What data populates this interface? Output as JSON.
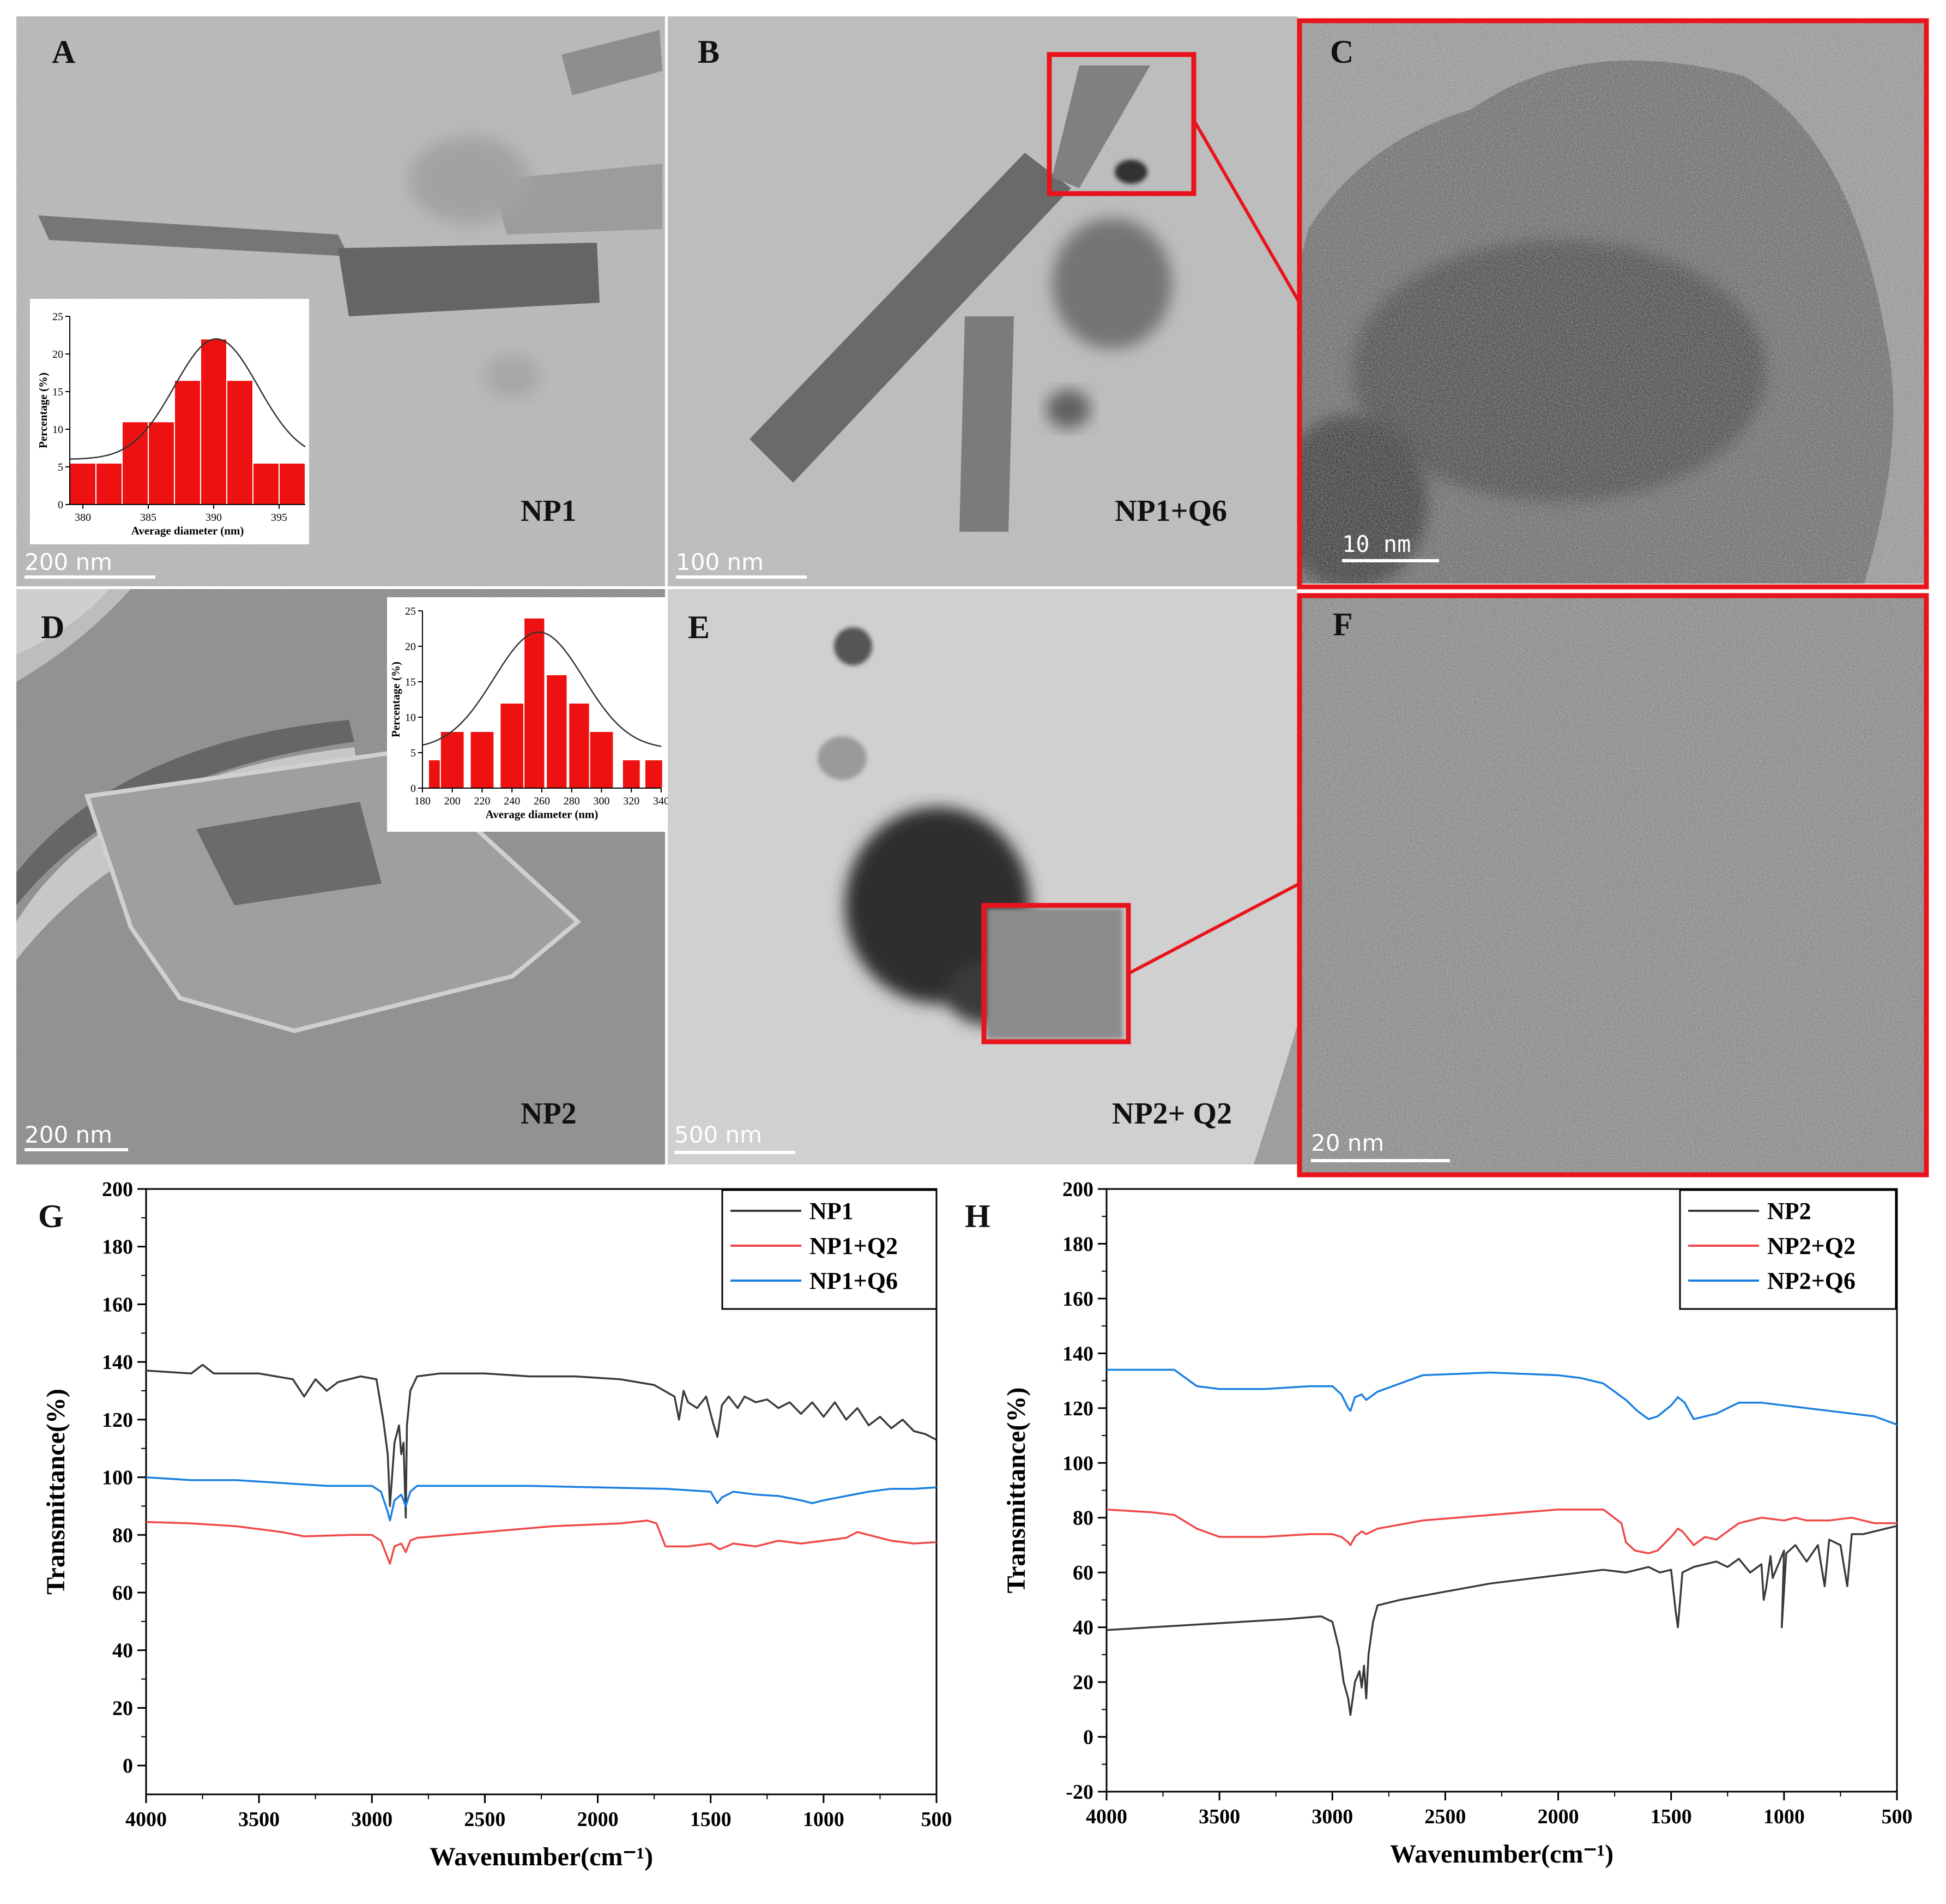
{
  "panels": {
    "A": {
      "letter": "A",
      "sample": "NP1",
      "scale": "200 nm"
    },
    "B": {
      "letter": "B",
      "sample": "NP1+Q6",
      "scale": "100 nm"
    },
    "C": {
      "letter": "C",
      "scale": "10 nm"
    },
    "D": {
      "letter": "D",
      "sample": "NP2",
      "scale": "200 nm"
    },
    "E": {
      "letter": "E",
      "sample": "NP2+ Q2",
      "scale": "500 nm"
    },
    "F": {
      "letter": "F",
      "scale": "20 nm"
    },
    "G": {
      "letter": "G"
    },
    "H": {
      "letter": "H"
    }
  },
  "colors": {
    "highlight": "#e8141c",
    "bar": "#ee1111",
    "np_base": "#3a3a3a",
    "q2": "#f04848",
    "q6": "#1a7fe0"
  },
  "chart_data": [
    {
      "id": "histA",
      "type": "bar",
      "categories": [
        380,
        382,
        384,
        386,
        388,
        390,
        392,
        394,
        396
      ],
      "values": [
        5.5,
        5.5,
        11,
        11,
        16.5,
        22,
        16.5,
        5.5,
        5.5
      ],
      "xticks": [
        380,
        385,
        390,
        395
      ],
      "yticks": [
        0,
        5,
        10,
        15,
        20,
        25
      ],
      "xlim": [
        379,
        397
      ],
      "ylim": [
        0,
        25
      ],
      "fit": {
        "mean": 390.2,
        "sd": 3.2,
        "peak": 22,
        "base": 6
      },
      "xlabel": "Average diameter (nm)",
      "ylabel": "Percentage (%)"
    },
    {
      "id": "histD",
      "type": "bar",
      "categories": [
        190,
        200,
        220,
        240,
        255,
        270,
        285,
        300,
        320,
        335
      ],
      "values": [
        4,
        8,
        8,
        12,
        24,
        16,
        12,
        8,
        4,
        4
      ],
      "xticks": [
        180,
        200,
        220,
        240,
        260,
        280,
        300,
        320,
        340
      ],
      "yticks": [
        0,
        5,
        10,
        15,
        20,
        25
      ],
      "xlim": [
        180,
        340
      ],
      "ylim": [
        0,
        25
      ],
      "fit": {
        "mean": 258,
        "sd": 30,
        "peak": 22,
        "base": 5.5
      },
      "xlabel": "Average diameter (nm)",
      "ylabel": "Percentage (%)"
    },
    {
      "id": "ftirG",
      "type": "line",
      "xlabel": "Wavenumber(cm⁻¹)",
      "ylabel": "Transmittance(%)",
      "xlim": [
        4000,
        500
      ],
      "ylim": [
        -10,
        200
      ],
      "xticks": [
        4000,
        3500,
        3000,
        2500,
        2000,
        1500,
        1000,
        500
      ],
      "yticks": [
        0,
        20,
        40,
        60,
        80,
        100,
        120,
        140,
        160,
        180,
        200
      ],
      "legend": "top-right",
      "series": [
        {
          "name": "NP1",
          "color": "#3a3a3a",
          "x": [
            4000,
            3800,
            3750,
            3700,
            3500,
            3350,
            3300,
            3250,
            3200,
            3150,
            3050,
            2980,
            2950,
            2930,
            2920,
            2900,
            2880,
            2870,
            2860,
            2850,
            2845,
            2830,
            2800,
            2700,
            2500,
            2300,
            2100,
            1900,
            1750,
            1660,
            1640,
            1620,
            1600,
            1560,
            1520,
            1490,
            1470,
            1450,
            1420,
            1380,
            1350,
            1300,
            1250,
            1200,
            1150,
            1100,
            1050,
            1000,
            950,
            900,
            850,
            800,
            750,
            700,
            650,
            600,
            550,
            500
          ],
          "y": [
            137,
            136,
            139,
            136,
            136,
            134,
            128,
            134,
            130,
            133,
            135,
            134,
            120,
            108,
            90,
            112,
            118,
            108,
            112,
            86,
            118,
            130,
            135,
            136,
            136,
            135,
            135,
            134,
            132,
            128,
            120,
            130,
            126,
            124,
            128,
            119,
            114,
            125,
            128,
            124,
            128,
            126,
            127,
            124,
            126,
            122,
            126,
            121,
            126,
            120,
            124,
            118,
            121,
            117,
            120,
            116,
            115,
            113
          ]
        },
        {
          "name": "NP1+Q2",
          "color": "#f04848",
          "x": [
            4000,
            3800,
            3600,
            3400,
            3300,
            3100,
            3000,
            2960,
            2930,
            2920,
            2900,
            2870,
            2850,
            2830,
            2800,
            2500,
            2200,
            1900,
            1780,
            1740,
            1720,
            1700,
            1600,
            1500,
            1460,
            1400,
            1300,
            1200,
            1100,
            1000,
            900,
            850,
            800,
            700,
            600,
            500
          ],
          "y": [
            84.5,
            84,
            83,
            81,
            79.5,
            80,
            80,
            78,
            72,
            70,
            76,
            77,
            74,
            78,
            79,
            81,
            83,
            84,
            85,
            84,
            80,
            76,
            76,
            77,
            75,
            77,
            76,
            78,
            77,
            78,
            79,
            81,
            80,
            78,
            77,
            77.5
          ]
        },
        {
          "name": "NP1+Q6",
          "color": "#1a7fe0",
          "x": [
            4000,
            3800,
            3600,
            3400,
            3200,
            3000,
            2960,
            2930,
            2920,
            2900,
            2870,
            2850,
            2830,
            2800,
            2600,
            2300,
            2000,
            1700,
            1500,
            1470,
            1450,
            1400,
            1300,
            1200,
            1100,
            1050,
            1000,
            900,
            800,
            700,
            600,
            500
          ],
          "y": [
            100,
            99,
            99,
            98,
            97,
            97,
            95,
            88,
            85,
            92,
            94,
            90,
            95,
            97,
            97,
            97,
            96.5,
            96,
            95,
            91,
            93,
            95,
            94,
            93.5,
            92,
            91,
            92,
            93.5,
            95,
            96,
            96,
            96.5
          ]
        }
      ]
    },
    {
      "id": "ftirH",
      "type": "line",
      "xlabel": "Wavenumber(cm⁻¹)",
      "ylabel": "Transmittance(%)",
      "xlim": [
        4000,
        500
      ],
      "ylim": [
        -20,
        200
      ],
      "xticks": [
        4000,
        3500,
        3000,
        2500,
        2000,
        1500,
        1000,
        500
      ],
      "yticks": [
        -20,
        0,
        20,
        40,
        60,
        80,
        100,
        120,
        140,
        160,
        180,
        200
      ],
      "legend": "top-right",
      "series": [
        {
          "name": "NP2",
          "color": "#3a3a3a",
          "x": [
            4000,
            3800,
            3600,
            3400,
            3200,
            3050,
            3000,
            2970,
            2950,
            2930,
            2920,
            2900,
            2880,
            2870,
            2860,
            2850,
            2840,
            2820,
            2800,
            2700,
            2500,
            2300,
            2100,
            1900,
            1800,
            1700,
            1600,
            1550,
            1500,
            1480,
            1470,
            1460,
            1450,
            1400,
            1300,
            1250,
            1200,
            1150,
            1100,
            1090,
            1080,
            1060,
            1050,
            1000,
            1010,
            990,
            950,
            900,
            850,
            820,
            800,
            750,
            720,
            700,
            650,
            600,
            550,
            500
          ],
          "y": [
            39,
            40,
            41,
            42,
            43,
            44,
            42,
            32,
            20,
            14,
            8,
            20,
            24,
            18,
            26,
            14,
            30,
            42,
            48,
            50,
            53,
            56,
            58,
            60,
            61,
            60,
            62,
            60,
            61,
            46,
            40,
            50,
            60,
            62,
            64,
            62,
            65,
            60,
            63,
            50,
            54,
            66,
            58,
            68,
            40,
            67,
            70,
            64,
            70,
            55,
            72,
            70,
            55,
            74,
            74,
            75,
            76,
            77
          ]
        },
        {
          "name": "NP2+Q2",
          "color": "#f04848",
          "x": [
            4000,
            3800,
            3700,
            3600,
            3500,
            3300,
            3100,
            3000,
            2960,
            2930,
            2920,
            2900,
            2870,
            2850,
            2800,
            2600,
            2300,
            2000,
            1800,
            1720,
            1700,
            1660,
            1600,
            1560,
            1500,
            1470,
            1450,
            1420,
            1400,
            1350,
            1300,
            1200,
            1100,
            1000,
            950,
            900,
            800,
            700,
            600,
            500
          ],
          "y": [
            83,
            82,
            81,
            76,
            73,
            73,
            74,
            74,
            73,
            71,
            70,
            73,
            75,
            74,
            76,
            79,
            81,
            83,
            83,
            78,
            71,
            68,
            67,
            68,
            73,
            76,
            75,
            72,
            70,
            73,
            72,
            78,
            80,
            79,
            80,
            79,
            79,
            80,
            78,
            78
          ]
        },
        {
          "name": "NP2+Q6",
          "color": "#1a7fe0",
          "x": [
            4000,
            3800,
            3700,
            3650,
            3600,
            3500,
            3300,
            3100,
            3000,
            2960,
            2930,
            2920,
            2900,
            2870,
            2850,
            2800,
            2600,
            2300,
            2000,
            1900,
            1800,
            1700,
            1650,
            1600,
            1560,
            1500,
            1470,
            1440,
            1400,
            1350,
            1300,
            1200,
            1100,
            1000,
            900,
            800,
            700,
            600,
            500
          ],
          "y": [
            134,
            134,
            134,
            131,
            128,
            127,
            127,
            128,
            128,
            125,
            120,
            119,
            124,
            125,
            123,
            126,
            132,
            133,
            132,
            131,
            129,
            123,
            119,
            116,
            117,
            121,
            124,
            122,
            116,
            117,
            118,
            122,
            122,
            121,
            120,
            119,
            118,
            117,
            114
          ]
        }
      ]
    }
  ]
}
